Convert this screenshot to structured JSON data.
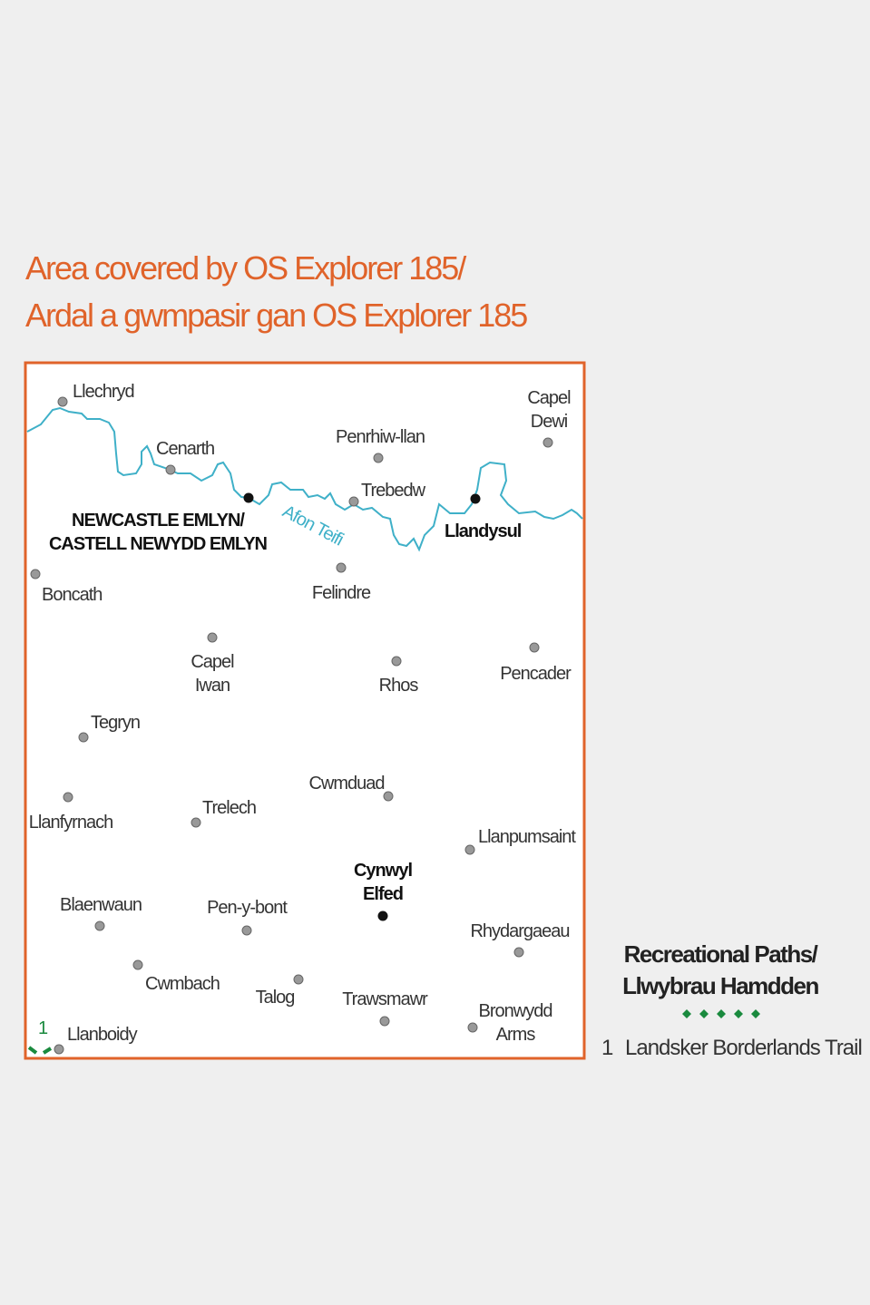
{
  "title": [
    "Area covered by OS Explorer 185/",
    "Ardal a gwmpasir gan OS Explorer 185"
  ],
  "river": "Afon Teifi",
  "route_number": "1",
  "places": [
    {
      "lines": [
        "Llechryd"
      ],
      "major": false
    },
    {
      "lines": [
        "Cenarth"
      ],
      "major": false
    },
    {
      "lines": [
        "Penrhiw-llan"
      ],
      "major": false
    },
    {
      "lines": [
        "Capel",
        "Dewi"
      ],
      "major": false
    },
    {
      "lines": [
        "Trebedw"
      ],
      "major": false
    },
    {
      "lines": [
        "NEWCASTLE EMLYN/",
        "CASTELL NEWYDD EMLYN"
      ],
      "major": true
    },
    {
      "lines": [
        "Llandysul"
      ],
      "major": true
    },
    {
      "lines": [
        "Boncath"
      ],
      "major": false
    },
    {
      "lines": [
        "Felindre"
      ],
      "major": false
    },
    {
      "lines": [
        "Capel",
        "Iwan"
      ],
      "major": false
    },
    {
      "lines": [
        "Rhos"
      ],
      "major": false
    },
    {
      "lines": [
        "Pencader"
      ],
      "major": false
    },
    {
      "lines": [
        "Tegryn"
      ],
      "major": false
    },
    {
      "lines": [
        "Cwmduad"
      ],
      "major": false
    },
    {
      "lines": [
        "Llanfyrnach"
      ],
      "major": false
    },
    {
      "lines": [
        "Trelech"
      ],
      "major": false
    },
    {
      "lines": [
        "Llanpumsaint"
      ],
      "major": false
    },
    {
      "lines": [
        "Cynwyl",
        "Elfed"
      ],
      "major": true
    },
    {
      "lines": [
        "Blaenwaun"
      ],
      "major": false
    },
    {
      "lines": [
        "Pen-y-bont"
      ],
      "major": false
    },
    {
      "lines": [
        "Rhydargaeau"
      ],
      "major": false
    },
    {
      "lines": [
        "Cwmbach"
      ],
      "major": false
    },
    {
      "lines": [
        "Talog"
      ],
      "major": false
    },
    {
      "lines": [
        "Trawsmawr"
      ],
      "major": false
    },
    {
      "lines": [
        "Bronwydd",
        "Arms"
      ],
      "major": false
    },
    {
      "lines": [
        "Llanboidy"
      ],
      "major": false
    }
  ],
  "legend": {
    "title": [
      "Recreational Paths/",
      "Llwybrau Hamdden"
    ],
    "items": [
      {
        "number": "1",
        "label": "Landsker Borderlands Trail"
      }
    ]
  }
}
